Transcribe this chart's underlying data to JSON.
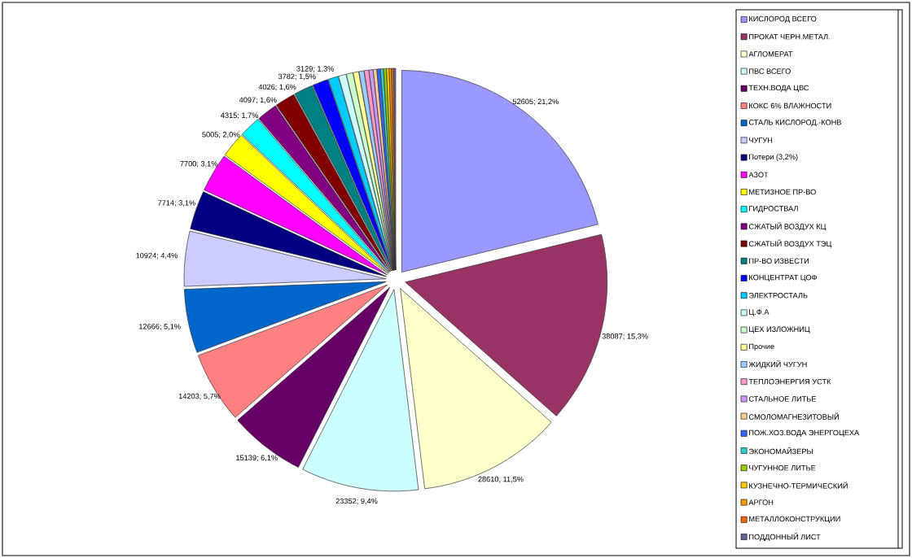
{
  "chart_data": {
    "type": "pie",
    "categories": [
      "КИСЛОРОД ВСЕГО",
      "ПРОКАТ ЧЕРН.МЕТАЛ.",
      "АГЛОМЕРАТ",
      "ПВС ВСЕГО",
      "ТЕХН.ВОДА ЦВС",
      "КОКС 6% ВЛАЖНОСТИ",
      "СТАЛЬ КИСЛОРОД.-КОНВ",
      "ЧУГУН",
      "Потери (3,2%)",
      "АЗОТ",
      "МЕТИЗНОЕ ПР-ВО",
      "ГИДРОСТВАЛ",
      "СЖАТЫЙ ВОЗДУХ КЦ",
      "СЖАТЫЙ ВОЗДУХ ТЭЦ",
      "ПР-ВО ИЗВЕСТИ",
      "КОНЦЕНТРАТ ЦОФ",
      "ЭЛЕКТРОСТАЛЬ",
      "Ц.Ф.А",
      "ЦЕХ ИЗЛОЖНИЦ",
      "Прочие",
      "ЖИДКИЙ ЧУГУН",
      "ТЕПЛОЭНЕРГИЯ УСТК",
      "СТАЛЬНОЕ ЛИТЬЕ",
      "СМОЛОМАГНЕЗИТОВЫЙ",
      "ПОЖ.ХОЗ.ВОДА ЭНЕРГОЦЕХА",
      "ЭКОНОМАЙЗЕРЫ",
      "ЧУГУННОЕ ЛИТЬЕ",
      "КУЗНЕЧНО-ТЕРМИЧЕСКИЙ",
      "АРГОН",
      "МЕТАЛЛОКОНСТРУКЦИИ",
      "ПОДДОННЫЙ ЛИСТ"
    ],
    "values": [
      52605,
      38087,
      28610,
      23352,
      15139,
      14203,
      12666,
      10924,
      7714,
      7700,
      5005,
      4315,
      4097,
      4026,
      3782,
      3129,
      2000,
      1500,
      1300,
      1100,
      1000,
      900,
      800,
      700,
      650,
      600,
      550,
      500,
      450,
      400,
      388
    ],
    "value_labels": [
      "52605; 21,2%",
      "38087; 15,3%",
      "28610; 11,5%",
      "23352; 9,4%",
      "15139; 6,1%",
      "14203; 5,7%",
      "12666; 5,1%",
      "10924; 4,4%",
      "7714; 3,1%",
      "7700; 3,1%",
      "5005; 2,0%",
      "4315; 1,7%",
      "4097; 1,6%",
      "4026; 1,6%",
      "3782; 1,5%",
      "3129; 1,3%",
      null,
      null,
      null,
      null,
      null,
      null,
      null,
      null,
      null,
      null,
      null,
      null,
      null,
      null,
      null
    ],
    "colors": [
      "#9999ff",
      "#993366",
      "#ffffcc",
      "#ccffff",
      "#660066",
      "#ff8080",
      "#0066cc",
      "#ccccff",
      "#000080",
      "#ff00ff",
      "#ffff00",
      "#00ffff",
      "#800080",
      "#800000",
      "#008080",
      "#0000ff",
      "#00ccff",
      "#ccffff",
      "#ccffcc",
      "#ffff99",
      "#99ccff",
      "#ff99cc",
      "#cc99ff",
      "#ffcc99",
      "#3366ff",
      "#33cccc",
      "#99cc00",
      "#ffcc00",
      "#ff9900",
      "#ff6600",
      "#666699"
    ],
    "legend": "right"
  }
}
